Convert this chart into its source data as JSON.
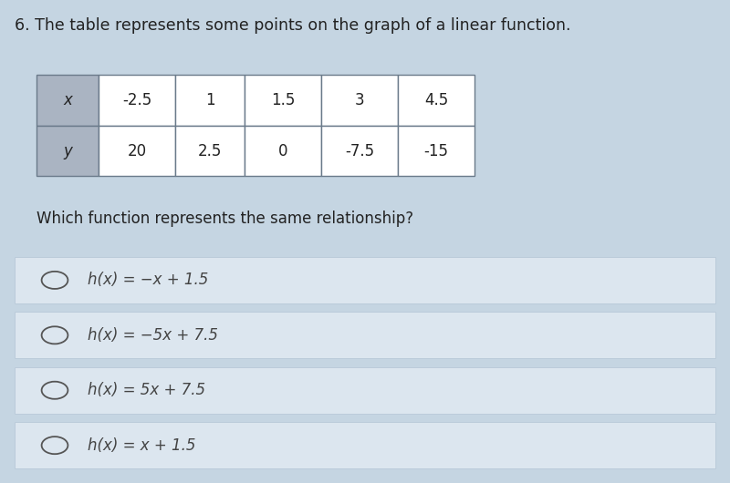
{
  "title": "6. The table represents some points on the graph of a linear function.",
  "question": "Which function represents the same relationship?",
  "table_x_label": "x",
  "table_y_label": "y",
  "table_x_values": [
    "-2.5",
    "1",
    "1.5",
    "3",
    "4.5"
  ],
  "table_y_values": [
    "20",
    "2.5",
    "0",
    "-7.5",
    "-15"
  ],
  "options": [
    "h(x) = −x + 1.5",
    "h(x) = −5x + 7.5",
    "h(x) = 5x + 7.5",
    "h(x) = x + 1.5"
  ],
  "bg_color": "#c5d5e2",
  "table_header_bg": "#aab4c2",
  "table_cell_bg": "#ffffff",
  "table_border": "#6a7a8a",
  "text_color": "#222222",
  "option_bg": "#dce6ef",
  "option_border": "#b8c8d8",
  "option_text_color": "#444444",
  "title_fontsize": 12.5,
  "question_fontsize": 12,
  "table_fontsize": 12,
  "option_fontsize": 12
}
